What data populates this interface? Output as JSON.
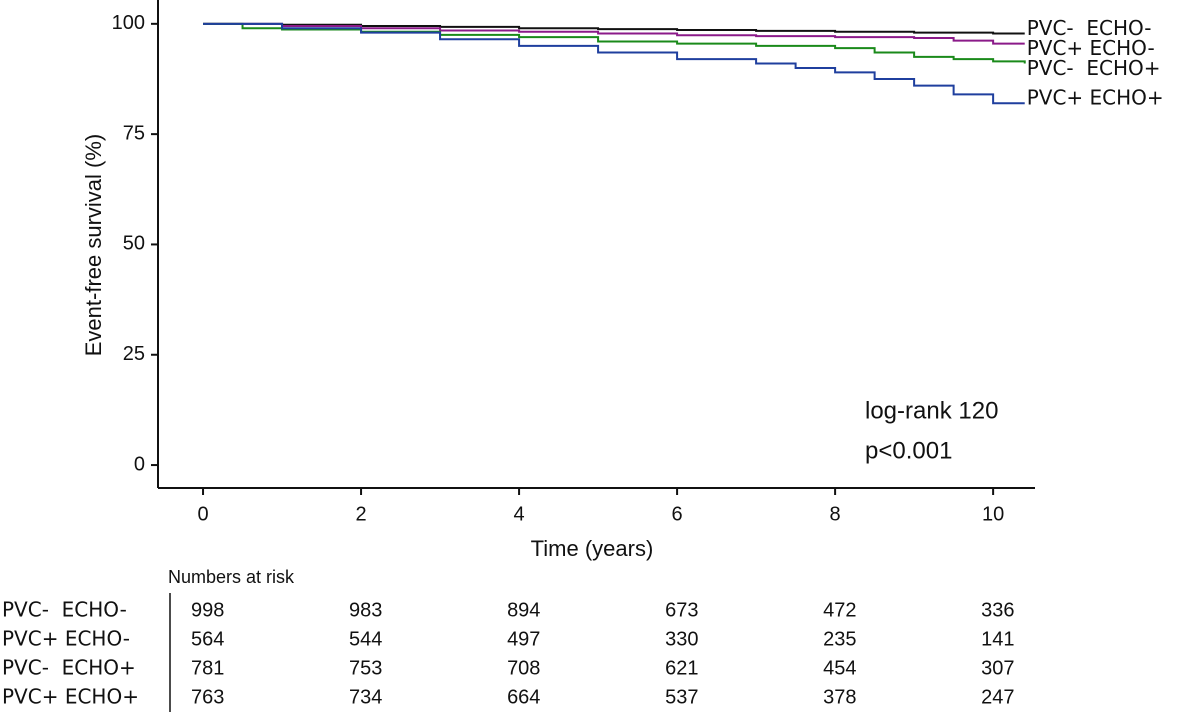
{
  "chart_data": {
    "type": "step",
    "x_label": "Time (years)",
    "y_label": "Event-free survival (%)",
    "xlim": [
      -0.57,
      10.53
    ],
    "ylim": [
      -5.2,
      105.4
    ],
    "xticks": [
      0,
      2,
      4,
      6,
      8,
      10
    ],
    "yticks": [
      0,
      25,
      50,
      75,
      100
    ],
    "annotation": [
      "log-rank 120",
      "p<0.001"
    ],
    "risk_table_title": "Numbers at risk",
    "series": [
      {
        "name": "PVC-  ECHO-",
        "color": "#111111",
        "x": [
          0,
          1,
          2,
          3,
          4,
          5,
          6,
          7,
          8,
          9,
          10,
          10.4
        ],
        "values": [
          100,
          99.8,
          99.5,
          99.3,
          99.0,
          98.8,
          98.6,
          98.4,
          98.2,
          98.0,
          97.8,
          97.8
        ],
        "at_risk": [
          998,
          983,
          894,
          673,
          472,
          336
        ]
      },
      {
        "name": "PVC+ ECHO-",
        "color": "#8b1a89",
        "x": [
          0,
          1,
          2,
          3,
          4,
          5,
          6,
          7,
          8,
          9,
          9.5,
          10,
          10.4
        ],
        "values": [
          100,
          99.5,
          99,
          98.5,
          98.2,
          97.8,
          97.4,
          97.2,
          97,
          96.8,
          96.2,
          95.5,
          95.5
        ],
        "at_risk": [
          564,
          544,
          497,
          330,
          235,
          141
        ]
      },
      {
        "name": "PVC-  ECHO+",
        "color": "#1a8a1a",
        "x": [
          0,
          0.5,
          1,
          2,
          3,
          4,
          5,
          6,
          7,
          8,
          8.5,
          9,
          9.5,
          10,
          10.4
        ],
        "values": [
          100,
          99,
          98.7,
          98.2,
          97.5,
          97,
          96,
          95.5,
          95,
          94.5,
          93.5,
          92.5,
          92,
          91.5,
          91
        ],
        "at_risk": [
          781,
          753,
          708,
          621,
          454,
          307
        ]
      },
      {
        "name": "PVC+ ECHO+",
        "color": "#1f3f9e",
        "x": [
          0,
          1,
          2,
          3,
          4,
          5,
          6,
          7,
          7.5,
          8,
          8.5,
          9,
          9.5,
          10,
          10.4
        ],
        "values": [
          100,
          99,
          98,
          96.5,
          95,
          93.5,
          92,
          91,
          90,
          89,
          87.5,
          86,
          84,
          82,
          82
        ],
        "at_risk": [
          763,
          734,
          664,
          537,
          378,
          247
        ]
      }
    ]
  }
}
